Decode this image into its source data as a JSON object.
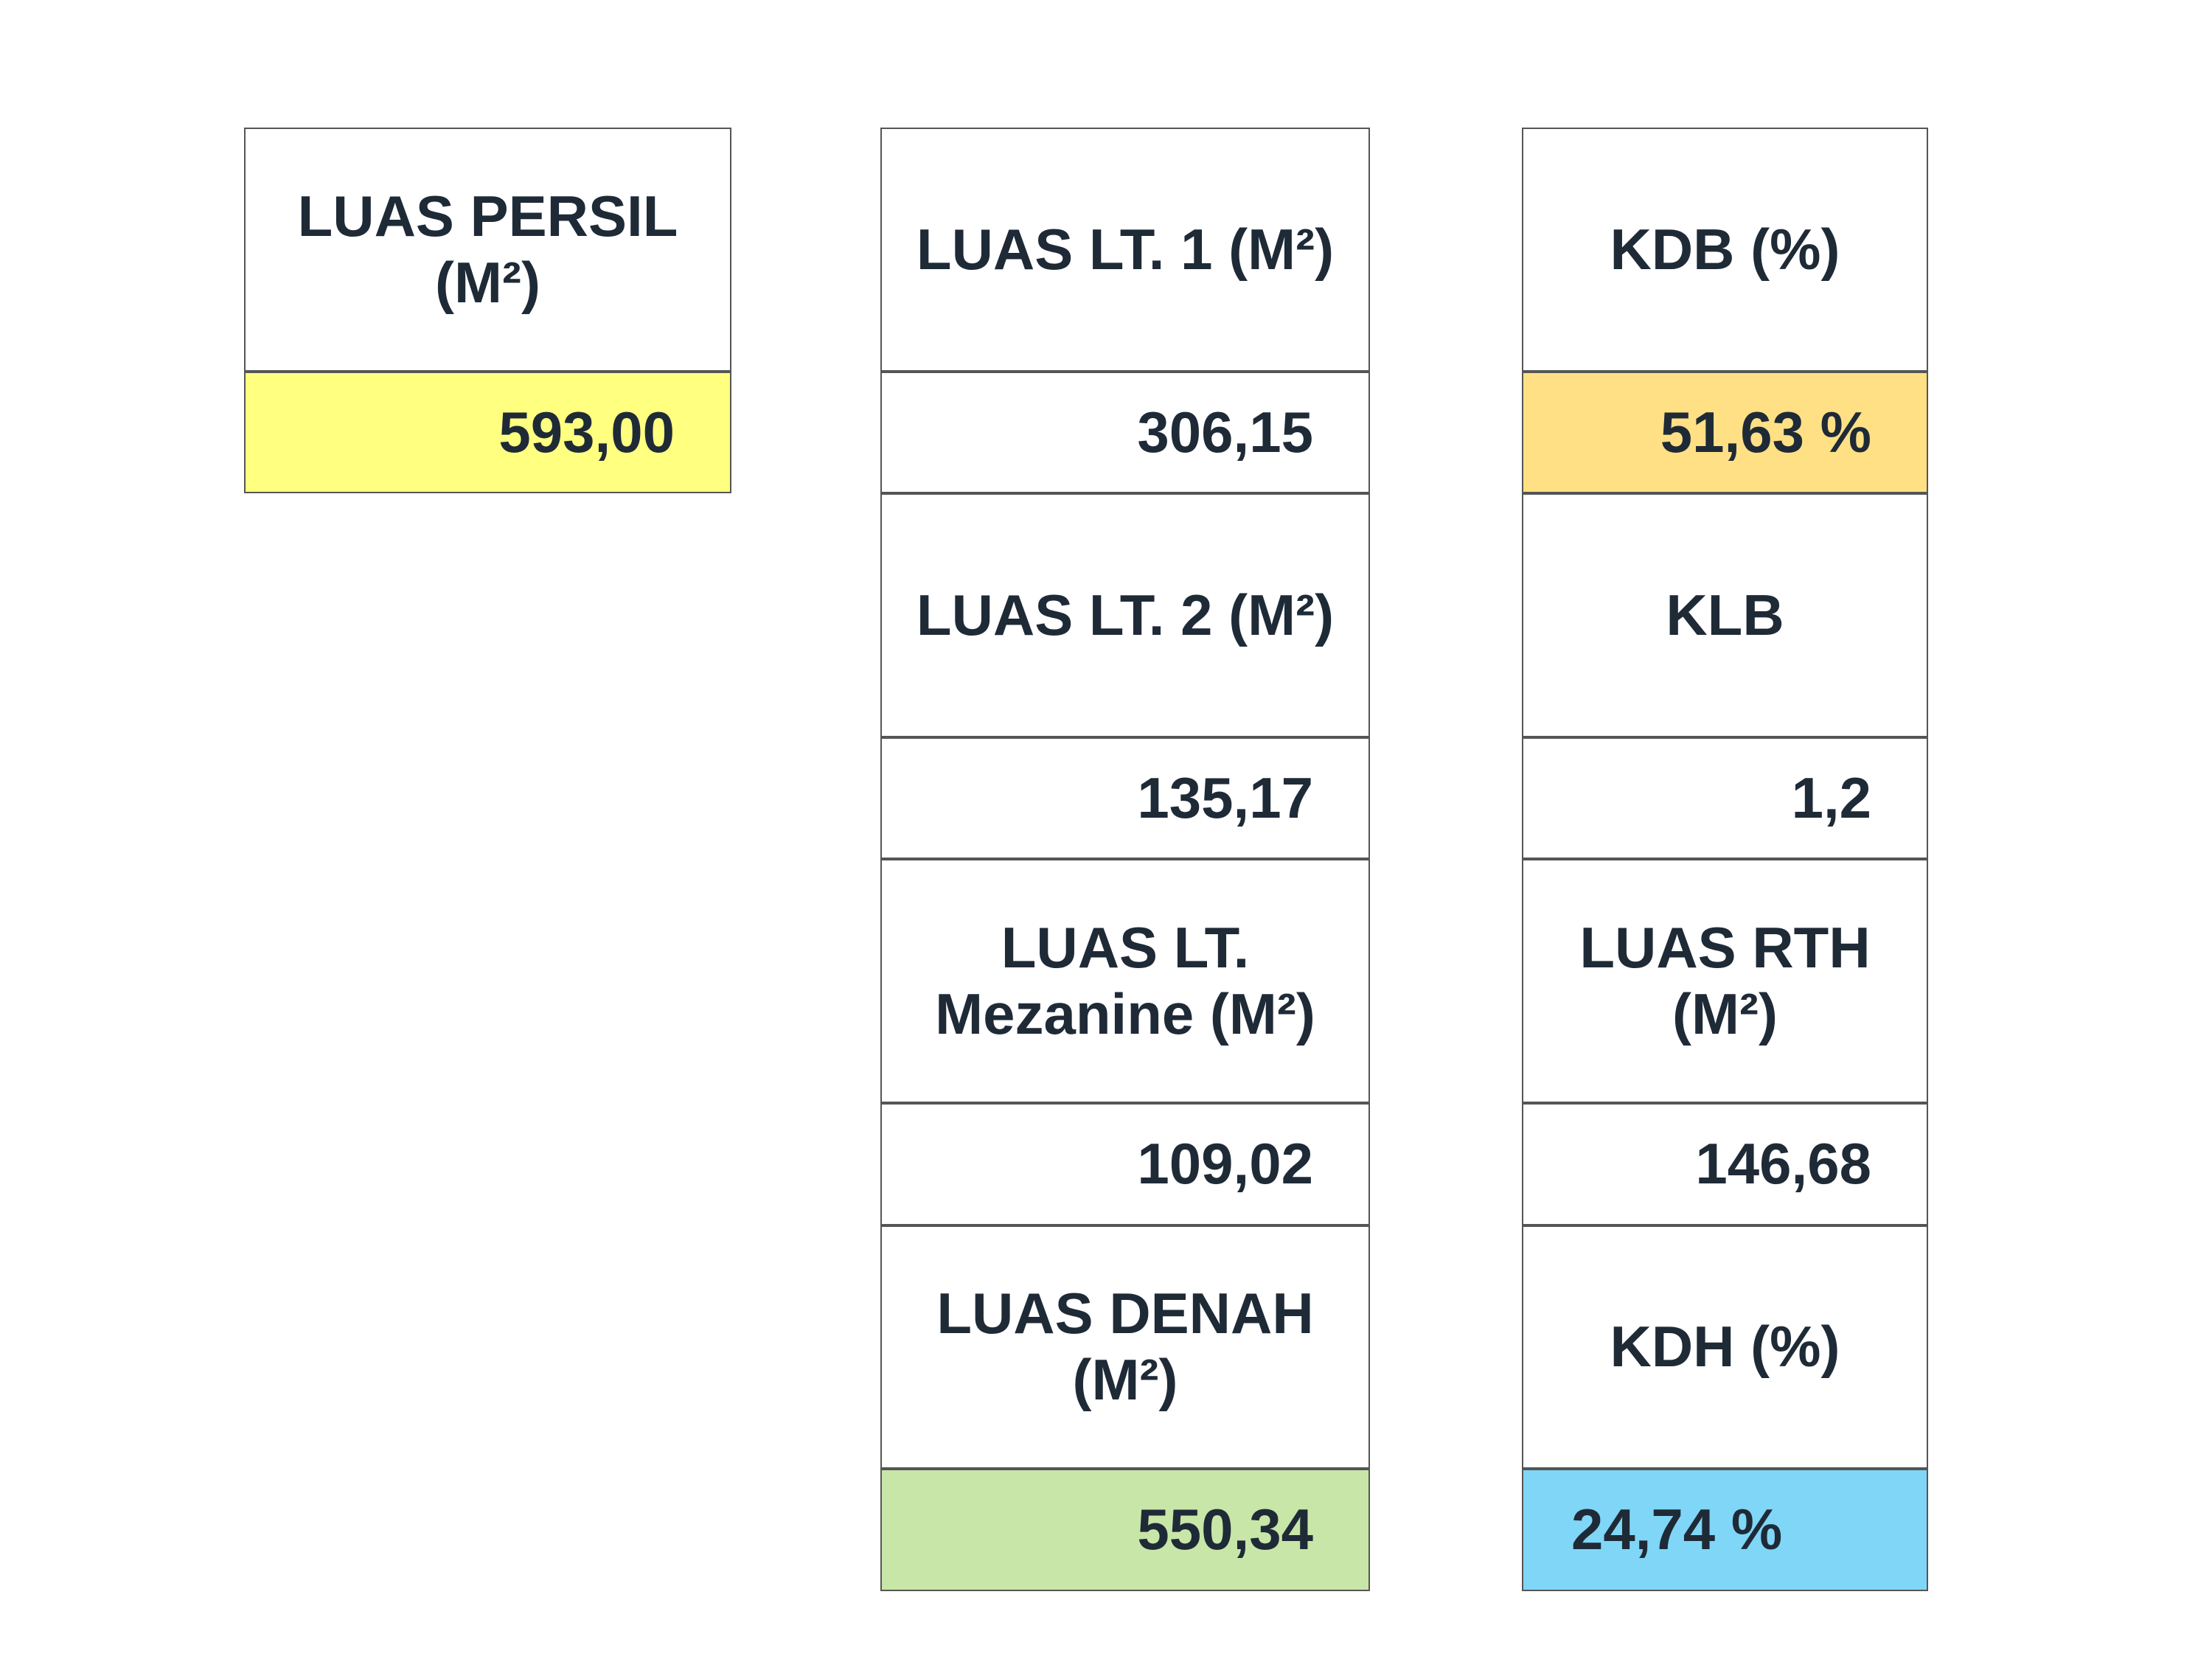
{
  "columns": [
    {
      "items": [
        {
          "label": "LUAS PERSIL (M²)",
          "value": "593,00"
        }
      ]
    },
    {
      "items": [
        {
          "label": "LUAS LT. 1 (M²)",
          "value": "306,15"
        },
        {
          "label": "LUAS LT. 2 (M²)",
          "value": "135,17"
        },
        {
          "label": "LUAS LT. Mezanine (M²)",
          "value": "109,02"
        },
        {
          "label": "LUAS DENAH (M²)",
          "value": "550,34"
        }
      ]
    },
    {
      "items": [
        {
          "label": "KDB (%)",
          "value": "51,63 %"
        },
        {
          "label": "KLB",
          "value": "1,2"
        },
        {
          "label": "LUAS RTH (M²)",
          "value": "146,68"
        },
        {
          "label": "KDH (%)",
          "value": "24,74 %"
        }
      ]
    }
  ]
}
